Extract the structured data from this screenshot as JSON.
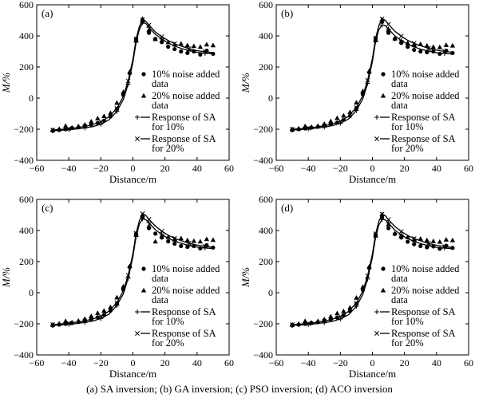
{
  "caption": "(a) SA inversion; (b) GA inversion; (c) PSO inversion; (d) ACO inversion",
  "colors": {
    "ink": "#000000",
    "background": "#ffffff"
  },
  "chart_data": [
    {
      "type": "line",
      "panel": "(a)",
      "xlabel": "Distance/m",
      "ylabel": "M/%",
      "xlim": [
        -60,
        60
      ],
      "ylim": [
        -400,
        600
      ],
      "xticks": [
        "−60",
        "−40",
        "−20",
        "0",
        "20",
        "40",
        "60"
      ],
      "yticks": [
        "−400",
        "−200",
        "0",
        "200",
        "400",
        "600"
      ],
      "legend": [
        "10% noise added data",
        "20% noise added data",
        "Response of SA for 10%",
        "Response of SA for 20%"
      ],
      "series": [
        {
          "name": "10% noise added data",
          "marker": "circle",
          "x": [
            -50,
            -46,
            -42,
            -38,
            -34,
            -30,
            -26,
            -22,
            -18,
            -14,
            -10,
            -6,
            -2,
            2,
            6,
            10,
            14,
            18,
            22,
            26,
            30,
            34,
            38,
            42,
            46,
            50
          ],
          "y": [
            -210,
            -205,
            -200,
            -192,
            -188,
            -180,
            -170,
            -160,
            -145,
            -118,
            -70,
            20,
            160,
            380,
            490,
            420,
            380,
            360,
            330,
            315,
            300,
            290,
            300,
            280,
            305,
            285
          ]
        },
        {
          "name": "20% noise added data",
          "marker": "triangle",
          "x": [
            -50,
            -46,
            -42,
            -38,
            -34,
            -30,
            -26,
            -22,
            -18,
            -14,
            -10,
            -6,
            -2,
            2,
            6,
            10,
            14,
            18,
            22,
            26,
            30,
            34,
            38,
            42,
            46,
            50
          ],
          "y": [
            -205,
            -198,
            -178,
            -190,
            -180,
            -170,
            -150,
            -130,
            -115,
            -95,
            -30,
            40,
            170,
            370,
            510,
            440,
            380,
            370,
            360,
            345,
            350,
            340,
            335,
            330,
            345,
            340
          ]
        },
        {
          "name": "Response of SA for 10%",
          "marker": "plus",
          "x": [
            -50,
            -45,
            -40,
            -35,
            -30,
            -25,
            -20,
            -15,
            -10,
            -6,
            -3,
            0,
            2,
            4,
            6,
            8,
            10,
            14,
            18,
            22,
            26,
            30,
            35,
            40,
            45,
            50
          ],
          "y": [
            -210,
            -207,
            -203,
            -198,
            -192,
            -183,
            -168,
            -140,
            -85,
            -10,
            90,
            230,
            360,
            440,
            485,
            480,
            455,
            410,
            380,
            355,
            335,
            320,
            305,
            295,
            288,
            285
          ]
        },
        {
          "name": "Response of SA for 20%",
          "marker": "cross",
          "x": [
            -50,
            -45,
            -40,
            -35,
            -30,
            -25,
            -20,
            -15,
            -10,
            -6,
            -3,
            0,
            2,
            4,
            6,
            8,
            10,
            14,
            18,
            22,
            26,
            30,
            35,
            40,
            45,
            50
          ],
          "y": [
            -205,
            -201,
            -197,
            -190,
            -182,
            -170,
            -152,
            -120,
            -65,
            10,
            110,
            250,
            380,
            460,
            505,
            495,
            470,
            425,
            395,
            370,
            350,
            335,
            318,
            305,
            298,
            292
          ]
        }
      ]
    },
    {
      "type": "line",
      "panel": "(b)",
      "xlabel": "Distance/m",
      "ylabel": "M/%",
      "xlim": [
        -60,
        60
      ],
      "ylim": [
        -400,
        600
      ],
      "xticks": [
        "−60",
        "−40",
        "−20",
        "0",
        "20",
        "40",
        "60"
      ],
      "yticks": [
        "−400",
        "−200",
        "0",
        "200",
        "400",
        "600"
      ],
      "legend": [
        "10% noise added data",
        "20% noise added data",
        "Response of SA for 10%",
        "Response of SA for 20%"
      ],
      "series": [
        {
          "name": "10% noise added data",
          "marker": "circle",
          "x": [
            -50,
            -46,
            -42,
            -38,
            -34,
            -30,
            -26,
            -22,
            -18,
            -14,
            -10,
            -6,
            -2,
            2,
            6,
            10,
            14,
            18,
            22,
            26,
            30,
            34,
            38,
            42,
            46,
            50
          ],
          "y": [
            -205,
            -200,
            -195,
            -190,
            -185,
            -178,
            -168,
            -158,
            -140,
            -115,
            -65,
            25,
            165,
            385,
            490,
            420,
            380,
            355,
            330,
            310,
            300,
            295,
            300,
            285,
            305,
            290
          ]
        },
        {
          "name": "20% noise added data",
          "marker": "triangle",
          "x": [
            -50,
            -46,
            -42,
            -38,
            -34,
            -30,
            -26,
            -22,
            -18,
            -14,
            -10,
            -6,
            -2,
            2,
            6,
            10,
            14,
            18,
            22,
            26,
            30,
            34,
            38,
            42,
            46,
            50
          ],
          "y": [
            -200,
            -195,
            -180,
            -185,
            -178,
            -165,
            -148,
            -128,
            -112,
            -90,
            -28,
            45,
            175,
            372,
            505,
            440,
            385,
            365,
            355,
            345,
            348,
            338,
            330,
            328,
            342,
            338
          ]
        },
        {
          "name": "Response of SA for 10%",
          "marker": "plus",
          "x": [
            -50,
            -45,
            -40,
            -35,
            -30,
            -25,
            -20,
            -15,
            -10,
            -6,
            -3,
            0,
            2,
            4,
            6,
            8,
            10,
            14,
            18,
            22,
            26,
            30,
            35,
            40,
            45,
            50
          ],
          "y": [
            -205,
            -202,
            -198,
            -193,
            -186,
            -177,
            -162,
            -135,
            -80,
            -5,
            95,
            235,
            365,
            440,
            470,
            465,
            445,
            400,
            370,
            348,
            330,
            315,
            302,
            292,
            287,
            283
          ]
        },
        {
          "name": "Response of SA for 20%",
          "marker": "cross",
          "x": [
            -50,
            -45,
            -40,
            -35,
            -30,
            -25,
            -20,
            -15,
            -10,
            -6,
            -3,
            0,
            2,
            4,
            6,
            8,
            10,
            14,
            18,
            22,
            26,
            30,
            35,
            40,
            45,
            50
          ],
          "y": [
            -200,
            -197,
            -193,
            -186,
            -178,
            -166,
            -148,
            -117,
            -60,
            15,
            115,
            255,
            385,
            465,
            510,
            500,
            475,
            430,
            398,
            372,
            352,
            337,
            320,
            308,
            300,
            295
          ]
        }
      ]
    },
    {
      "type": "line",
      "panel": "(c)",
      "xlabel": "Distance/m",
      "ylabel": "M/%",
      "xlim": [
        -60,
        60
      ],
      "ylim": [
        -400,
        600
      ],
      "xticks": [
        "−60",
        "−40",
        "−20",
        "0",
        "20",
        "40",
        "60"
      ],
      "yticks": [
        "−400",
        "−200",
        "0",
        "200",
        "400",
        "600"
      ],
      "legend": [
        "10% noise added data",
        "20% noise added data",
        "Response of SA for 10%",
        "Response of SA for 20%"
      ],
      "series": [
        {
          "name": "10% noise added data",
          "marker": "circle",
          "x": [
            -50,
            -46,
            -42,
            -38,
            -34,
            -30,
            -26,
            -22,
            -18,
            -14,
            -10,
            -6,
            -2,
            2,
            6,
            10,
            14,
            18,
            22,
            26,
            30,
            34,
            38,
            42,
            46,
            50
          ],
          "y": [
            -210,
            -205,
            -200,
            -195,
            -188,
            -180,
            -170,
            -158,
            -142,
            -115,
            -70,
            20,
            165,
            380,
            485,
            415,
            380,
            355,
            330,
            315,
            300,
            295,
            300,
            285,
            305,
            290
          ]
        },
        {
          "name": "20% noise added data",
          "marker": "triangle",
          "x": [
            -50,
            -46,
            -42,
            -38,
            -34,
            -30,
            -26,
            -22,
            -18,
            -14,
            -10,
            -6,
            -2,
            2,
            6,
            10,
            14,
            18,
            22,
            26,
            30,
            34,
            38,
            42,
            46,
            50
          ],
          "y": [
            -205,
            -198,
            -182,
            -190,
            -180,
            -168,
            -150,
            -130,
            -115,
            -92,
            -30,
            40,
            172,
            372,
            500,
            430,
            330,
            365,
            358,
            345,
            350,
            338,
            333,
            330,
            345,
            340
          ]
        },
        {
          "name": "Response of SA for 10%",
          "marker": "plus",
          "x": [
            -50,
            -45,
            -40,
            -35,
            -30,
            -25,
            -20,
            -15,
            -10,
            -6,
            -3,
            0,
            2,
            4,
            6,
            8,
            10,
            14,
            18,
            22,
            26,
            30,
            35,
            40,
            45,
            50
          ],
          "y": [
            -210,
            -207,
            -203,
            -198,
            -191,
            -182,
            -166,
            -138,
            -82,
            -8,
            92,
            232,
            362,
            440,
            475,
            470,
            450,
            405,
            375,
            350,
            332,
            318,
            303,
            294,
            288,
            284
          ]
        },
        {
          "name": "Response of SA for 20%",
          "marker": "cross",
          "x": [
            -50,
            -45,
            -40,
            -35,
            -30,
            -25,
            -20,
            -15,
            -10,
            -6,
            -3,
            0,
            2,
            4,
            6,
            8,
            10,
            14,
            18,
            22,
            26,
            30,
            35,
            40,
            45,
            50
          ],
          "y": [
            -205,
            -201,
            -196,
            -189,
            -181,
            -169,
            -151,
            -119,
            -63,
            12,
            112,
            252,
            382,
            462,
            508,
            498,
            472,
            428,
            396,
            370,
            350,
            335,
            318,
            306,
            298,
            292
          ]
        }
      ]
    },
    {
      "type": "line",
      "panel": "(d)",
      "xlabel": "Distance/m",
      "ylabel": "M/%",
      "xlim": [
        -60,
        60
      ],
      "ylim": [
        -400,
        600
      ],
      "xticks": [
        "−60",
        "−40",
        "−20",
        "0",
        "20",
        "40",
        "60"
      ],
      "yticks": [
        "−400",
        "−200",
        "0",
        "200",
        "400",
        "600"
      ],
      "legend": [
        "10% noise added data",
        "20% noise added data",
        "Response of SA for 10%",
        "Response of SA for 20%"
      ],
      "series": [
        {
          "name": "10% noise added data",
          "marker": "circle",
          "x": [
            -50,
            -46,
            -42,
            -38,
            -34,
            -30,
            -26,
            -22,
            -18,
            -14,
            -10,
            -6,
            -2,
            2,
            6,
            10,
            14,
            18,
            22,
            26,
            30,
            34,
            38,
            42,
            46,
            50
          ],
          "y": [
            -210,
            -205,
            -200,
            -195,
            -190,
            -182,
            -172,
            -160,
            -145,
            -118,
            -72,
            18,
            160,
            375,
            485,
            415,
            378,
            355,
            328,
            312,
            300,
            292,
            298,
            283,
            302,
            288
          ]
        },
        {
          "name": "20% noise added data",
          "marker": "triangle",
          "x": [
            -50,
            -46,
            -42,
            -38,
            -34,
            -30,
            -26,
            -22,
            -18,
            -14,
            -10,
            -6,
            -2,
            2,
            6,
            10,
            14,
            18,
            22,
            26,
            30,
            34,
            38,
            42,
            46,
            50
          ],
          "y": [
            -205,
            -200,
            -182,
            -192,
            -182,
            -170,
            -152,
            -132,
            -118,
            -95,
            -32,
            38,
            168,
            368,
            505,
            440,
            382,
            368,
            358,
            345,
            348,
            338,
            332,
            328,
            342,
            338
          ]
        },
        {
          "name": "Response of SA for 10%",
          "marker": "plus",
          "x": [
            -50,
            -45,
            -40,
            -35,
            -30,
            -25,
            -20,
            -15,
            -10,
            -6,
            -3,
            0,
            2,
            4,
            6,
            8,
            10,
            14,
            18,
            22,
            26,
            30,
            35,
            40,
            45,
            50
          ],
          "y": [
            -210,
            -207,
            -204,
            -199,
            -193,
            -184,
            -169,
            -142,
            -88,
            -12,
            88,
            228,
            358,
            435,
            472,
            468,
            448,
            402,
            372,
            348,
            330,
            316,
            302,
            292,
            287,
            283
          ]
        },
        {
          "name": "Response of SA for 20%",
          "marker": "cross",
          "x": [
            -50,
            -45,
            -40,
            -35,
            -30,
            -25,
            -20,
            -15,
            -10,
            -6,
            -3,
            0,
            2,
            4,
            6,
            8,
            10,
            14,
            18,
            22,
            26,
            30,
            35,
            40,
            45,
            50
          ],
          "y": [
            -205,
            -202,
            -198,
            -191,
            -183,
            -171,
            -153,
            -121,
            -66,
            9,
            109,
            249,
            379,
            459,
            505,
            496,
            470,
            426,
            394,
            368,
            348,
            334,
            317,
            305,
            297,
            291
          ]
        }
      ]
    }
  ]
}
